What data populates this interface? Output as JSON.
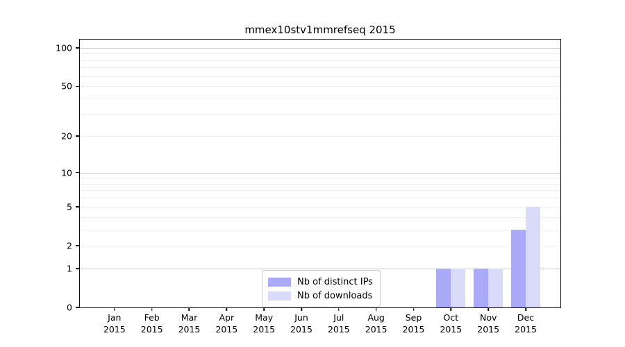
{
  "chart_data": {
    "type": "bar",
    "title": "mmex10stv1mmrefseq 2015",
    "categories": [
      "Jan",
      "Feb",
      "Mar",
      "Apr",
      "May",
      "Jun",
      "Jul",
      "Aug",
      "Sep",
      "Oct",
      "Nov",
      "Dec"
    ],
    "year_label": "2015",
    "series": [
      {
        "name": "Nb of distinct IPs",
        "color": "#aaaaf9",
        "values": [
          0,
          0,
          0,
          0,
          0,
          0,
          0,
          0,
          0,
          1,
          1,
          3
        ]
      },
      {
        "name": "Nb of downloads",
        "color": "#dadafa",
        "values": [
          0,
          0,
          0,
          0,
          0,
          0,
          0,
          0,
          0,
          1,
          1,
          5
        ]
      }
    ],
    "xlabel": "",
    "ylabel": "",
    "y_scale": "log1p",
    "y_ticks": [
      0,
      1,
      2,
      5,
      10,
      20,
      50,
      100
    ],
    "y_tick_labels": [
      "0",
      "1",
      "2",
      "5",
      "10",
      "20",
      "50",
      "100"
    ],
    "y_max": 116,
    "major_gridlines": [
      1,
      10,
      100
    ],
    "minor_gridlines": [
      2,
      3,
      4,
      5,
      6,
      7,
      8,
      9,
      20,
      30,
      40,
      50,
      60,
      70,
      80,
      90
    ],
    "grid": true,
    "legend_position": "lower center-left inside plot"
  },
  "colors": {
    "bar_distinct_ips": "#aaaaf9",
    "bar_downloads": "#dadafa",
    "major_grid": "#c7c7c7",
    "minor_grid": "#f0f0f0",
    "spine": "#0a0a0a",
    "legend_border": "#cccccc",
    "text": "#000000"
  }
}
